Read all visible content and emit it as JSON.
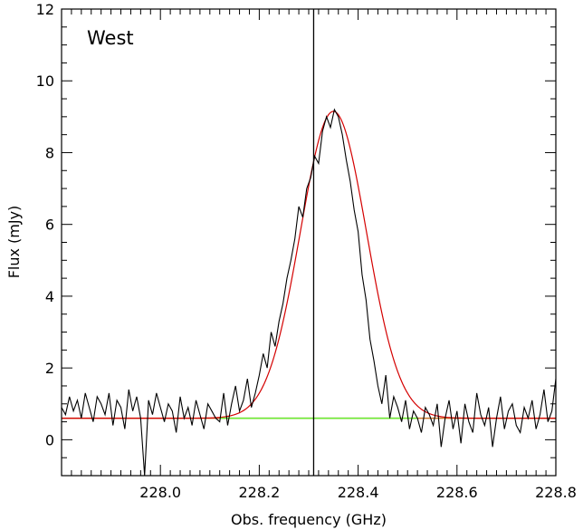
{
  "chart_data": {
    "type": "line",
    "annotation": "West",
    "xlabel": "Obs. frequency (GHz)",
    "ylabel": "Flux (mJy)",
    "xlim": [
      227.8,
      228.8
    ],
    "ylim": [
      -1,
      12
    ],
    "x_ticks": [
      228.0,
      228.2,
      228.4,
      228.6,
      228.8
    ],
    "x_tick_labels": [
      "228.0",
      "228.2",
      "228.4",
      "228.6",
      "228.8"
    ],
    "y_ticks": [
      0,
      2,
      4,
      6,
      8,
      10,
      12
    ],
    "y_tick_labels": [
      "0",
      "2",
      "4",
      "6",
      "8",
      "10",
      "12"
    ],
    "grid": false,
    "vertical_line_x": 228.31,
    "series": [
      {
        "kind": "observed",
        "color": "#000000",
        "x": [
          227.8,
          227.808,
          227.816,
          227.824,
          227.832,
          227.84,
          227.848,
          227.856,
          227.864,
          227.872,
          227.88,
          227.888,
          227.896,
          227.904,
          227.912,
          227.92,
          227.928,
          227.936,
          227.944,
          227.952,
          227.96,
          227.968,
          227.976,
          227.984,
          227.992,
          228.0,
          228.008,
          228.016,
          228.024,
          228.032,
          228.04,
          228.048,
          228.056,
          228.064,
          228.072,
          228.08,
          228.088,
          228.096,
          228.104,
          228.112,
          228.12,
          228.128,
          228.136,
          228.144,
          228.152,
          228.16,
          228.168,
          228.176,
          228.184,
          228.192,
          228.2,
          228.208,
          228.216,
          228.224,
          228.232,
          228.24,
          228.248,
          228.256,
          228.264,
          228.272,
          228.28,
          228.288,
          228.296,
          228.304,
          228.312,
          228.32,
          228.328,
          228.336,
          228.344,
          228.352,
          228.36,
          228.368,
          228.376,
          228.384,
          228.392,
          228.4,
          228.408,
          228.416,
          228.424,
          228.432,
          228.44,
          228.448,
          228.456,
          228.464,
          228.472,
          228.48,
          228.488,
          228.496,
          228.504,
          228.512,
          228.52,
          228.528,
          228.536,
          228.544,
          228.552,
          228.56,
          228.568,
          228.576,
          228.584,
          228.592,
          228.6,
          228.608,
          228.616,
          228.624,
          228.632,
          228.64,
          228.648,
          228.656,
          228.664,
          228.672,
          228.68,
          228.688,
          228.696,
          228.704,
          228.712,
          228.72,
          228.728,
          228.736,
          228.744,
          228.752,
          228.76,
          228.768,
          228.776,
          228.784,
          228.792,
          228.8
        ],
        "y": [
          0.9,
          0.7,
          1.2,
          0.8,
          1.1,
          0.6,
          1.3,
          0.9,
          0.5,
          1.2,
          1.0,
          0.7,
          1.3,
          0.4,
          1.1,
          0.9,
          0.3,
          1.4,
          0.8,
          1.2,
          0.6,
          -1.0,
          1.1,
          0.7,
          1.3,
          0.9,
          0.5,
          1.0,
          0.8,
          0.2,
          1.2,
          0.6,
          0.9,
          0.4,
          1.1,
          0.7,
          0.3,
          1.0,
          0.8,
          0.6,
          0.5,
          1.3,
          0.4,
          1.0,
          1.5,
          0.8,
          1.1,
          1.7,
          0.9,
          1.3,
          1.8,
          2.4,
          2.0,
          3.0,
          2.6,
          3.3,
          3.8,
          4.5,
          5.0,
          5.6,
          6.5,
          6.2,
          7.0,
          7.3,
          7.9,
          7.7,
          8.6,
          9.0,
          8.7,
          9.2,
          9.0,
          8.5,
          7.8,
          7.2,
          6.4,
          5.8,
          4.6,
          3.9,
          2.8,
          2.2,
          1.5,
          1.0,
          1.8,
          0.6,
          1.2,
          0.9,
          0.5,
          1.1,
          0.3,
          0.8,
          0.6,
          0.2,
          0.9,
          0.7,
          0.4,
          1.0,
          -0.2,
          0.6,
          1.1,
          0.3,
          0.8,
          -0.1,
          1.0,
          0.5,
          0.2,
          1.3,
          0.7,
          0.4,
          0.9,
          -0.2,
          0.6,
          1.2,
          0.3,
          0.8,
          1.0,
          0.4,
          0.2,
          0.9,
          0.6,
          1.1,
          0.3,
          0.7,
          1.4,
          0.5,
          0.8,
          1.7
        ]
      },
      {
        "kind": "gaussian-fit",
        "color": "#d40000",
        "baseline": 0.6,
        "amplitude": 8.55,
        "center": 228.35,
        "sigma": 0.067
      },
      {
        "kind": "continuum",
        "color": "#66ee33",
        "x": [
          228.12,
          228.52
        ],
        "y": [
          0.6,
          0.6
        ]
      }
    ],
    "continuum_extension_color": "#c8772c"
  }
}
